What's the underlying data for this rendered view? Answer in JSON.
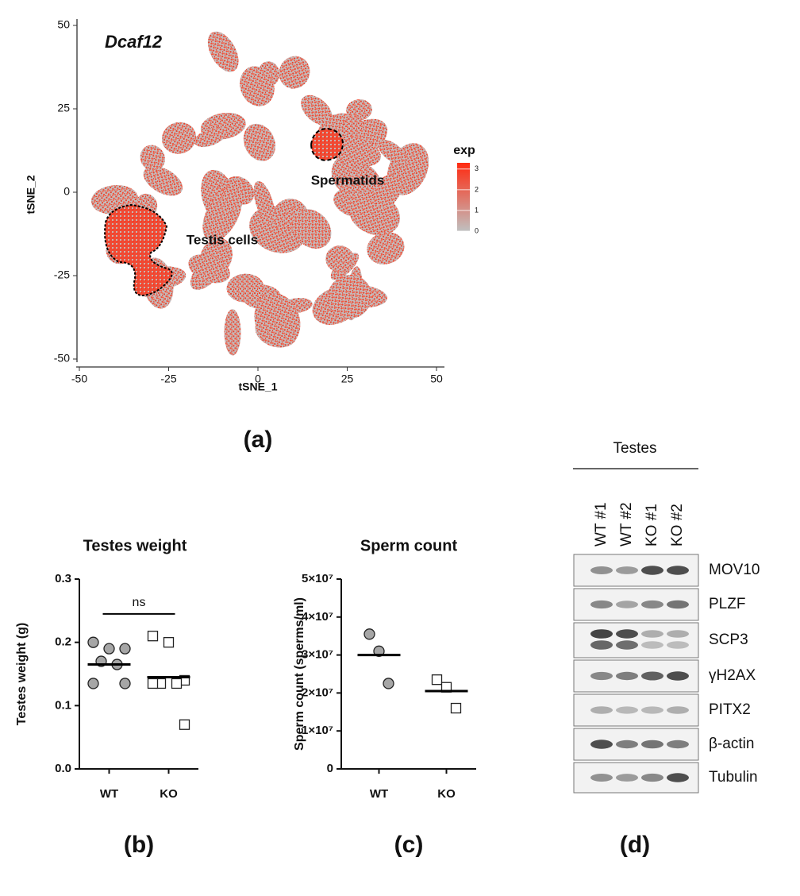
{
  "chart_data": [
    {
      "type": "scatter",
      "title": "Dcaf12",
      "xlabel": "tSNE_1",
      "ylabel": "tSNE_2",
      "xlim": [
        -50,
        50
      ],
      "ylim": [
        -50,
        50
      ],
      "xticks": [
        -50,
        -25,
        0,
        25,
        50
      ],
      "yticks": [
        -50,
        -25,
        0,
        25,
        50
      ],
      "annotations": [
        "Spermatids",
        "Testis cells"
      ],
      "colorbar": {
        "title": "exp",
        "lim": [
          0,
          3.3
        ],
        "ticks": [
          0,
          1,
          2,
          3
        ],
        "colors": [
          "#c0c0c0",
          "#ff2a10"
        ]
      }
    },
    {
      "type": "dot",
      "title": "Testes weight",
      "ylabel": "Testes weight (g)",
      "categories": [
        "WT",
        "KO"
      ],
      "values": [
        [
          0.2,
          0.19,
          0.19,
          0.17,
          0.165,
          0.135,
          0.135
        ],
        [
          0.21,
          0.2,
          0.14,
          0.135,
          0.135,
          0.135,
          0.07
        ]
      ],
      "center_line": [
        0.165,
        0.145
      ],
      "markers": [
        "circle",
        "square"
      ],
      "colors": [
        "#a6a6a6",
        "#ffffff"
      ],
      "ylim": [
        0,
        0.3
      ],
      "yticks": [
        {
          "value": 0,
          "label": "0.0"
        },
        0.1,
        0.2,
        0.3
      ],
      "significance": {
        "label": "ns",
        "y": 0.245
      }
    },
    {
      "type": "dot",
      "title": "Sperm count",
      "ylabel": "Sperm count (sperms/ml)",
      "categories": [
        "WT",
        "KO"
      ],
      "values": [
        [
          35500000,
          31000000,
          22500000
        ],
        [
          23500000,
          21500000,
          16000000
        ]
      ],
      "center_line": [
        30000000,
        20500000
      ],
      "markers": [
        "circle",
        "square"
      ],
      "colors": [
        "#a6a6a6",
        "#ffffff"
      ],
      "ylim": [
        0,
        50000000
      ],
      "yticks": [
        0,
        {
          "value": 10000000,
          "label": "1×10⁷"
        },
        {
          "value": 20000000,
          "label": "2×10⁷"
        },
        {
          "value": 30000000,
          "label": "3×10⁷"
        },
        {
          "value": 40000000,
          "label": "4×10⁷"
        },
        {
          "value": 50000000,
          "label": "5×10⁷"
        }
      ]
    }
  ],
  "blot": {
    "title": "Testes",
    "lanes": [
      "WT #1",
      "WT #2",
      "KO #1",
      "KO #2"
    ],
    "bands": [
      "MOV10",
      "PLZF",
      "SCP3",
      "γH2AX",
      "PITX2",
      "β-actin",
      "Tubulin"
    ]
  },
  "panel_labels": [
    "(a)",
    "(b)",
    "(c)",
    "(d)"
  ]
}
